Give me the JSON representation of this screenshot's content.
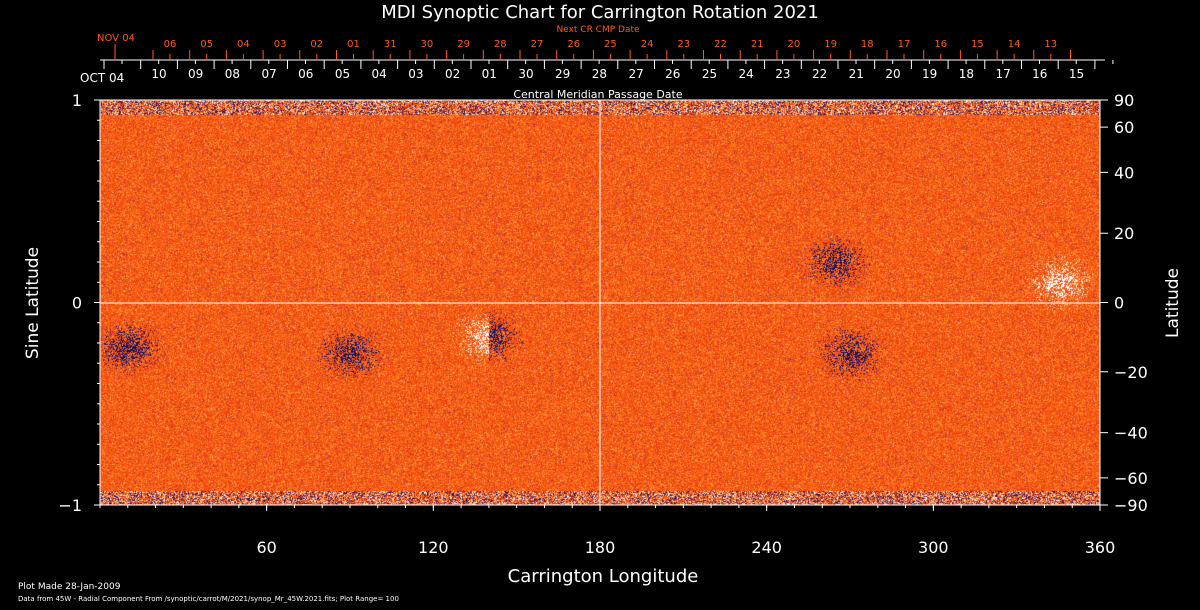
{
  "chart_data": {
    "type": "heatmap",
    "title": "MDI Synoptic Chart for Carrington Rotation 2021",
    "xlabel": "Carrington Longitude",
    "ylabel_left": "Sine Latitude",
    "ylabel_right": "Latitude",
    "xlim": [
      0,
      360
    ],
    "ylim": [
      -1,
      1
    ],
    "x_ticks": [
      "60",
      "120",
      "180",
      "240",
      "300",
      "360"
    ],
    "x_tick_values": [
      60,
      120,
      180,
      240,
      300,
      360
    ],
    "y_left_ticks": [
      "1",
      "0",
      "−1"
    ],
    "y_left_tick_values": [
      1,
      0,
      -1
    ],
    "y_right_ticks": [
      "90",
      "60",
      "40",
      "20",
      "0",
      "−20",
      "−40",
      "−60",
      "−90"
    ],
    "y_right_tick_values": [
      90,
      60,
      40,
      20,
      0,
      -20,
      -40,
      -60,
      -90
    ],
    "top_axis_title": "Central Meridian Passage Date",
    "top_axis_start": "OCT 04",
    "top_axis_labels": [
      "10",
      "09",
      "08",
      "07",
      "06",
      "05",
      "04",
      "03",
      "02",
      "01",
      "30",
      "29",
      "28",
      "27",
      "26",
      "25",
      "24",
      "23",
      "22",
      "21",
      "20",
      "19",
      "18",
      "17",
      "16",
      "15"
    ],
    "next_axis_title": "Next CR CMP Date",
    "next_axis_start": "NOV 04",
    "next_axis_labels": [
      "06",
      "05",
      "04",
      "03",
      "02",
      "01",
      "31",
      "30",
      "29",
      "28",
      "27",
      "26",
      "25",
      "24",
      "23",
      "22",
      "21",
      "20",
      "19",
      "18",
      "17",
      "16",
      "15",
      "14",
      "13"
    ],
    "colorscale": {
      "positive": "#ffffff",
      "mid": "#ff4a10",
      "negative": "#10105a"
    },
    "plot_range": 100,
    "active_regions": [
      {
        "lon": 140,
        "lat_sine": -0.17,
        "polarity": "mixed"
      },
      {
        "lon": 90,
        "lat_sine": -0.25,
        "polarity": "negative"
      },
      {
        "lon": 270,
        "lat_sine": -0.25,
        "polarity": "negative"
      },
      {
        "lon": 345,
        "lat_sine": 0.1,
        "polarity": "positive"
      },
      {
        "lon": 265,
        "lat_sine": 0.2,
        "polarity": "negative"
      },
      {
        "lon": 10,
        "lat_sine": -0.22,
        "polarity": "negative"
      }
    ]
  },
  "footer": {
    "plot_made": "Plot Made 28-Jan-2009",
    "source": "Data from 45W - Radial Component From /synoptic/carrot/M/2021/synop_Mr_45W.2021.fits; Plot Range=  100"
  }
}
